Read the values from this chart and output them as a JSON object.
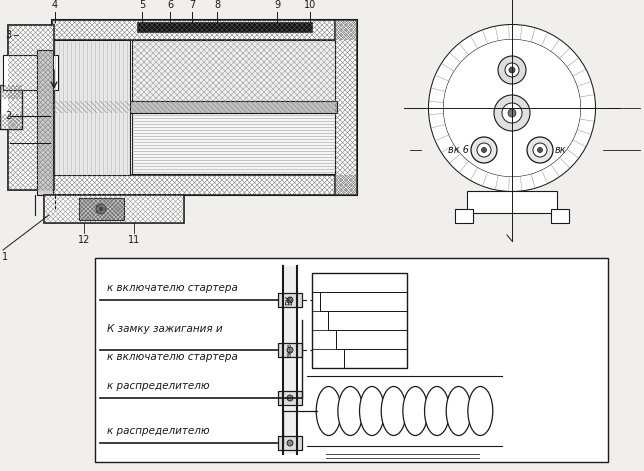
{
  "bg_color": "#f0efeb",
  "line_color": "#1a1a1a",
  "white": "#ffffff",
  "gray_light": "#d8d8d8",
  "gray_med": "#b0b0b0",
  "gray_dark": "#888888",
  "black": "#111111",
  "labels_top": [
    "4",
    "5",
    "6",
    "7",
    "8",
    "9",
    "10"
  ],
  "label_vk6": "вк 6",
  "label_vk": "вк",
  "conn_label1": "к включателю стартера",
  "conn_label2a": "К замку зажигания и",
  "conn_label2b": "к включателю стартера",
  "conn_label3": "к распределителю",
  "conn_label4": "к распределителю"
}
